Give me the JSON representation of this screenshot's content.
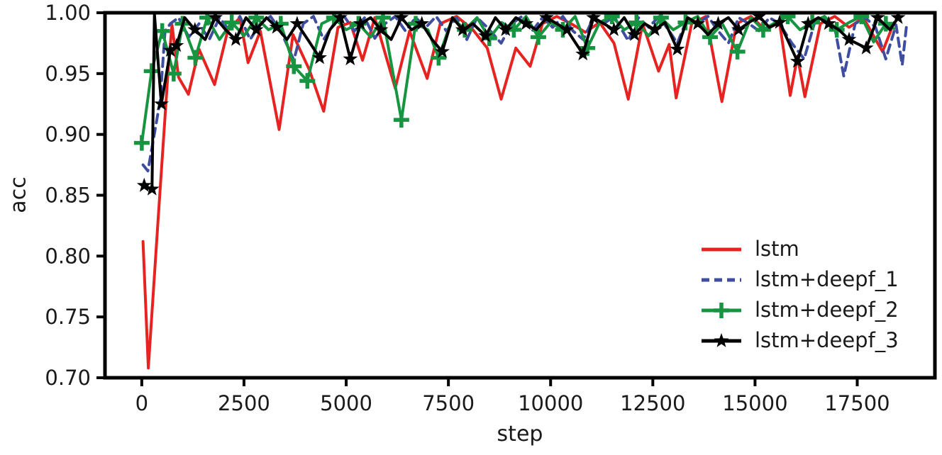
{
  "figure": {
    "background": "#ffffff",
    "text_color": "#1a1a1a",
    "spine_color": "#000000"
  },
  "chart_data": {
    "type": "line",
    "title": "",
    "xlabel": "step",
    "ylabel": "acc",
    "xlim": [
      -900,
      19400
    ],
    "ylim": [
      0.7,
      1.0
    ],
    "x_ticks": [
      0,
      2500,
      5000,
      7500,
      10000,
      12500,
      15000,
      17500
    ],
    "x_tick_labels": [
      "0",
      "2500",
      "5000",
      "7500",
      "10000",
      "12500",
      "15000",
      "17500"
    ],
    "y_ticks": [
      0.7,
      0.75,
      0.8,
      0.85,
      0.9,
      0.95,
      1.0
    ],
    "y_tick_labels": [
      "0.70",
      "0.75",
      "0.80",
      "0.85",
      "0.90",
      "0.95",
      "1.00"
    ],
    "grid": false,
    "legend_position": "lower right",
    "series": [
      {
        "name": "lstm",
        "color": "#e62320",
        "linestyle": "solid",
        "marker": "none",
        "points": [
          [
            30,
            0.812
          ],
          [
            160,
            0.708
          ],
          [
            400,
            0.83
          ],
          [
            650,
            0.955
          ],
          [
            740,
            0.99
          ],
          [
            900,
            0.947
          ],
          [
            1140,
            0.933
          ],
          [
            1400,
            0.97
          ],
          [
            1780,
            0.941
          ],
          [
            2100,
            0.985
          ],
          [
            2400,
            0.996
          ],
          [
            2600,
            0.959
          ],
          [
            2900,
            0.985
          ],
          [
            3360,
            0.904
          ],
          [
            3700,
            0.982
          ],
          [
            4100,
            0.953
          ],
          [
            4450,
            0.919
          ],
          [
            4800,
            0.988
          ],
          [
            5100,
            0.992
          ],
          [
            5400,
            0.961
          ],
          [
            5700,
            0.996
          ],
          [
            6200,
            0.938
          ],
          [
            6550,
            0.985
          ],
          [
            6980,
            0.946
          ],
          [
            7300,
            0.991
          ],
          [
            7700,
            0.997
          ],
          [
            8100,
            0.986
          ],
          [
            8450,
            0.971
          ],
          [
            8790,
            0.929
          ],
          [
            9150,
            0.971
          ],
          [
            9500,
            0.956
          ],
          [
            9800,
            0.991
          ],
          [
            10150,
            0.997
          ],
          [
            10500,
            0.991
          ],
          [
            10850,
            0.984
          ],
          [
            11200,
            0.992
          ],
          [
            11550,
            0.975
          ],
          [
            11900,
            0.929
          ],
          [
            12250,
            0.991
          ],
          [
            12640,
            0.952
          ],
          [
            12900,
            0.974
          ],
          [
            13070,
            0.93
          ],
          [
            13450,
            0.991
          ],
          [
            13800,
            0.997
          ],
          [
            14190,
            0.927
          ],
          [
            14550,
            0.991
          ],
          [
            14900,
            0.997
          ],
          [
            15250,
            0.986
          ],
          [
            15600,
            0.992
          ],
          [
            15860,
            0.932
          ],
          [
            16040,
            0.964
          ],
          [
            16220,
            0.931
          ],
          [
            16600,
            0.991
          ],
          [
            16950,
            0.997
          ],
          [
            17300,
            0.988
          ],
          [
            17650,
            0.996
          ],
          [
            18000,
            0.975
          ],
          [
            18120,
            0.968
          ],
          [
            18400,
            0.992
          ]
        ]
      },
      {
        "name": "lstm+deepf_1",
        "color": "#3e4da0",
        "linestyle": "dashed",
        "marker": "none",
        "points": [
          [
            30,
            0.875
          ],
          [
            150,
            0.87
          ],
          [
            300,
            0.899
          ],
          [
            450,
            0.928
          ],
          [
            570,
            0.985
          ],
          [
            700,
            0.991
          ],
          [
            900,
            0.996
          ],
          [
            1150,
            0.98
          ],
          [
            1400,
            0.991
          ],
          [
            1650,
            0.978
          ],
          [
            1900,
            0.996
          ],
          [
            2150,
            0.985
          ],
          [
            2400,
            0.997
          ],
          [
            2650,
            0.978
          ],
          [
            2900,
            0.991
          ],
          [
            3150,
            0.997
          ],
          [
            3400,
            0.985
          ],
          [
            3720,
            0.961
          ],
          [
            3950,
            0.991
          ],
          [
            4200,
            0.997
          ],
          [
            4450,
            0.978
          ],
          [
            4700,
            0.991
          ],
          [
            4950,
            0.997
          ],
          [
            5200,
            0.985
          ],
          [
            5450,
            0.996
          ],
          [
            5700,
            0.979
          ],
          [
            5950,
            0.991
          ],
          [
            6200,
            0.997
          ],
          [
            6450,
            0.985
          ],
          [
            6700,
            0.996
          ],
          [
            6950,
            0.988
          ],
          [
            7200,
            0.997
          ],
          [
            7450,
            0.985
          ],
          [
            7700,
            0.996
          ],
          [
            7950,
            0.978
          ],
          [
            8200,
            0.996
          ],
          [
            8450,
            0.988
          ],
          [
            8790,
            0.975
          ],
          [
            9050,
            0.991
          ],
          [
            9300,
            0.997
          ],
          [
            9550,
            0.985
          ],
          [
            9800,
            0.996
          ],
          [
            10050,
            0.988
          ],
          [
            10300,
            0.997
          ],
          [
            10550,
            0.985
          ],
          [
            10800,
            0.978
          ],
          [
            11050,
            0.996
          ],
          [
            11300,
            0.991
          ],
          [
            11550,
            0.997
          ],
          [
            11900,
            0.977
          ],
          [
            12150,
            0.996
          ],
          [
            12400,
            0.988
          ],
          [
            12650,
            0.997
          ],
          [
            12900,
            0.985
          ],
          [
            13100,
            0.975
          ],
          [
            13350,
            0.996
          ],
          [
            13600,
            0.991
          ],
          [
            13850,
            0.997
          ],
          [
            14100,
            0.985
          ],
          [
            14350,
            0.975
          ],
          [
            14600,
            0.996
          ],
          [
            14850,
            0.991
          ],
          [
            15100,
            0.985
          ],
          [
            15350,
            0.996
          ],
          [
            15600,
            0.991
          ],
          [
            15900,
            0.975
          ],
          [
            16200,
            0.962
          ],
          [
            16450,
            0.991
          ],
          [
            16700,
            0.996
          ],
          [
            16950,
            0.988
          ],
          [
            17170,
            0.948
          ],
          [
            17450,
            0.991
          ],
          [
            17700,
            0.996
          ],
          [
            17950,
            0.988
          ],
          [
            18200,
            0.962
          ],
          [
            18450,
            0.99
          ],
          [
            18600,
            0.957
          ],
          [
            18700,
            0.988
          ]
        ]
      },
      {
        "name": "lstm+deepf_2",
        "color": "#169440",
        "linestyle": "solid",
        "marker": "plus",
        "marker_rule": {
          "every": 2,
          "offset": 0,
          "always_below": 0.972
        },
        "points": [
          [
            0,
            0.893
          ],
          [
            240,
            0.952
          ],
          [
            500,
            0.985
          ],
          [
            780,
            0.95
          ],
          [
            1000,
            0.991
          ],
          [
            1310,
            0.963
          ],
          [
            1600,
            0.996
          ],
          [
            1900,
            0.978
          ],
          [
            2200,
            0.992
          ],
          [
            2500,
            0.981
          ],
          [
            2800,
            0.996
          ],
          [
            3100,
            0.986
          ],
          [
            3400,
            0.991
          ],
          [
            3720,
            0.956
          ],
          [
            4050,
            0.944
          ],
          [
            4400,
            0.991
          ],
          [
            4700,
            0.996
          ],
          [
            5000,
            0.986
          ],
          [
            5300,
            0.991
          ],
          [
            5600,
            0.98
          ],
          [
            5900,
            0.996
          ],
          [
            6350,
            0.912
          ],
          [
            6700,
            0.991
          ],
          [
            7000,
            0.986
          ],
          [
            7260,
            0.963
          ],
          [
            7600,
            0.996
          ],
          [
            7900,
            0.986
          ],
          [
            8200,
            0.996
          ],
          [
            8500,
            0.979
          ],
          [
            8800,
            0.992
          ],
          [
            9100,
            0.986
          ],
          [
            9400,
            0.997
          ],
          [
            9700,
            0.98
          ],
          [
            10000,
            0.992
          ],
          [
            10300,
            0.986
          ],
          [
            10600,
            0.997
          ],
          [
            10900,
            0.971
          ],
          [
            11200,
            0.992
          ],
          [
            11500,
            0.997
          ],
          [
            11800,
            0.986
          ],
          [
            12100,
            0.992
          ],
          [
            12400,
            0.981
          ],
          [
            12700,
            0.996
          ],
          [
            13000,
            0.986
          ],
          [
            13300,
            0.992
          ],
          [
            13600,
            0.997
          ],
          [
            13900,
            0.98
          ],
          [
            14200,
            0.991
          ],
          [
            14570,
            0.968
          ],
          [
            14900,
            0.996
          ],
          [
            15200,
            0.986
          ],
          [
            15500,
            0.992
          ],
          [
            15800,
            0.997
          ],
          [
            16100,
            0.986
          ],
          [
            16400,
            0.992
          ],
          [
            16700,
            0.997
          ],
          [
            17000,
            0.986
          ],
          [
            17300,
            0.992
          ],
          [
            17600,
            0.997
          ],
          [
            17900,
            0.976
          ],
          [
            18200,
            0.991
          ],
          [
            18400,
            0.987
          ]
        ]
      },
      {
        "name": "lstm+deepf_3",
        "color": "#000000",
        "linestyle": "solid",
        "marker": "star",
        "marker_rule": {
          "every": 2,
          "offset": 1,
          "always_below": 0.973
        },
        "points": [
          [
            60,
            0.858
          ],
          [
            250,
            0.855
          ],
          [
            310,
            0.999
          ],
          [
            480,
            0.925
          ],
          [
            700,
            0.969
          ],
          [
            850,
            0.973
          ],
          [
            1050,
            0.996
          ],
          [
            1300,
            0.986
          ],
          [
            1550,
            0.978
          ],
          [
            1800,
            0.996
          ],
          [
            2050,
            0.986
          ],
          [
            2300,
            0.978
          ],
          [
            2550,
            0.996
          ],
          [
            2800,
            0.986
          ],
          [
            3050,
            0.996
          ],
          [
            3300,
            0.988
          ],
          [
            3550,
            0.978
          ],
          [
            3800,
            0.991
          ],
          [
            4100,
            0.976
          ],
          [
            4350,
            0.963
          ],
          [
            4600,
            0.986
          ],
          [
            4850,
            0.996
          ],
          [
            5100,
            0.962
          ],
          [
            5350,
            0.991
          ],
          [
            5600,
            0.996
          ],
          [
            5850,
            0.986
          ],
          [
            6100,
            0.978
          ],
          [
            6350,
            0.996
          ],
          [
            6600,
            0.986
          ],
          [
            6850,
            0.991
          ],
          [
            7100,
            0.978
          ],
          [
            7350,
            0.968
          ],
          [
            7600,
            0.996
          ],
          [
            7850,
            0.986
          ],
          [
            8100,
            0.991
          ],
          [
            8410,
            0.981
          ],
          [
            8650,
            0.996
          ],
          [
            8900,
            0.986
          ],
          [
            9150,
            0.996
          ],
          [
            9400,
            0.991
          ],
          [
            9650,
            0.986
          ],
          [
            9900,
            0.996
          ],
          [
            10150,
            0.991
          ],
          [
            10400,
            0.986
          ],
          [
            10790,
            0.966
          ],
          [
            11050,
            0.996
          ],
          [
            11300,
            0.991
          ],
          [
            11550,
            0.986
          ],
          [
            11800,
            0.996
          ],
          [
            12050,
            0.982
          ],
          [
            12300,
            0.991
          ],
          [
            12550,
            0.986
          ],
          [
            12800,
            0.992
          ],
          [
            13100,
            0.97
          ],
          [
            13350,
            0.996
          ],
          [
            13600,
            0.991
          ],
          [
            13850,
            0.982
          ],
          [
            14100,
            0.991
          ],
          [
            14350,
            0.996
          ],
          [
            14600,
            0.986
          ],
          [
            14850,
            0.992
          ],
          [
            15100,
            0.997
          ],
          [
            15350,
            0.988
          ],
          [
            15600,
            0.992
          ],
          [
            16040,
            0.96
          ],
          [
            16300,
            0.991
          ],
          [
            16550,
            0.996
          ],
          [
            16800,
            0.991
          ],
          [
            17050,
            0.986
          ],
          [
            17300,
            0.978
          ],
          [
            17720,
            0.971
          ],
          [
            18000,
            0.996
          ],
          [
            18300,
            0.986
          ],
          [
            18500,
            0.996
          ]
        ]
      }
    ]
  }
}
